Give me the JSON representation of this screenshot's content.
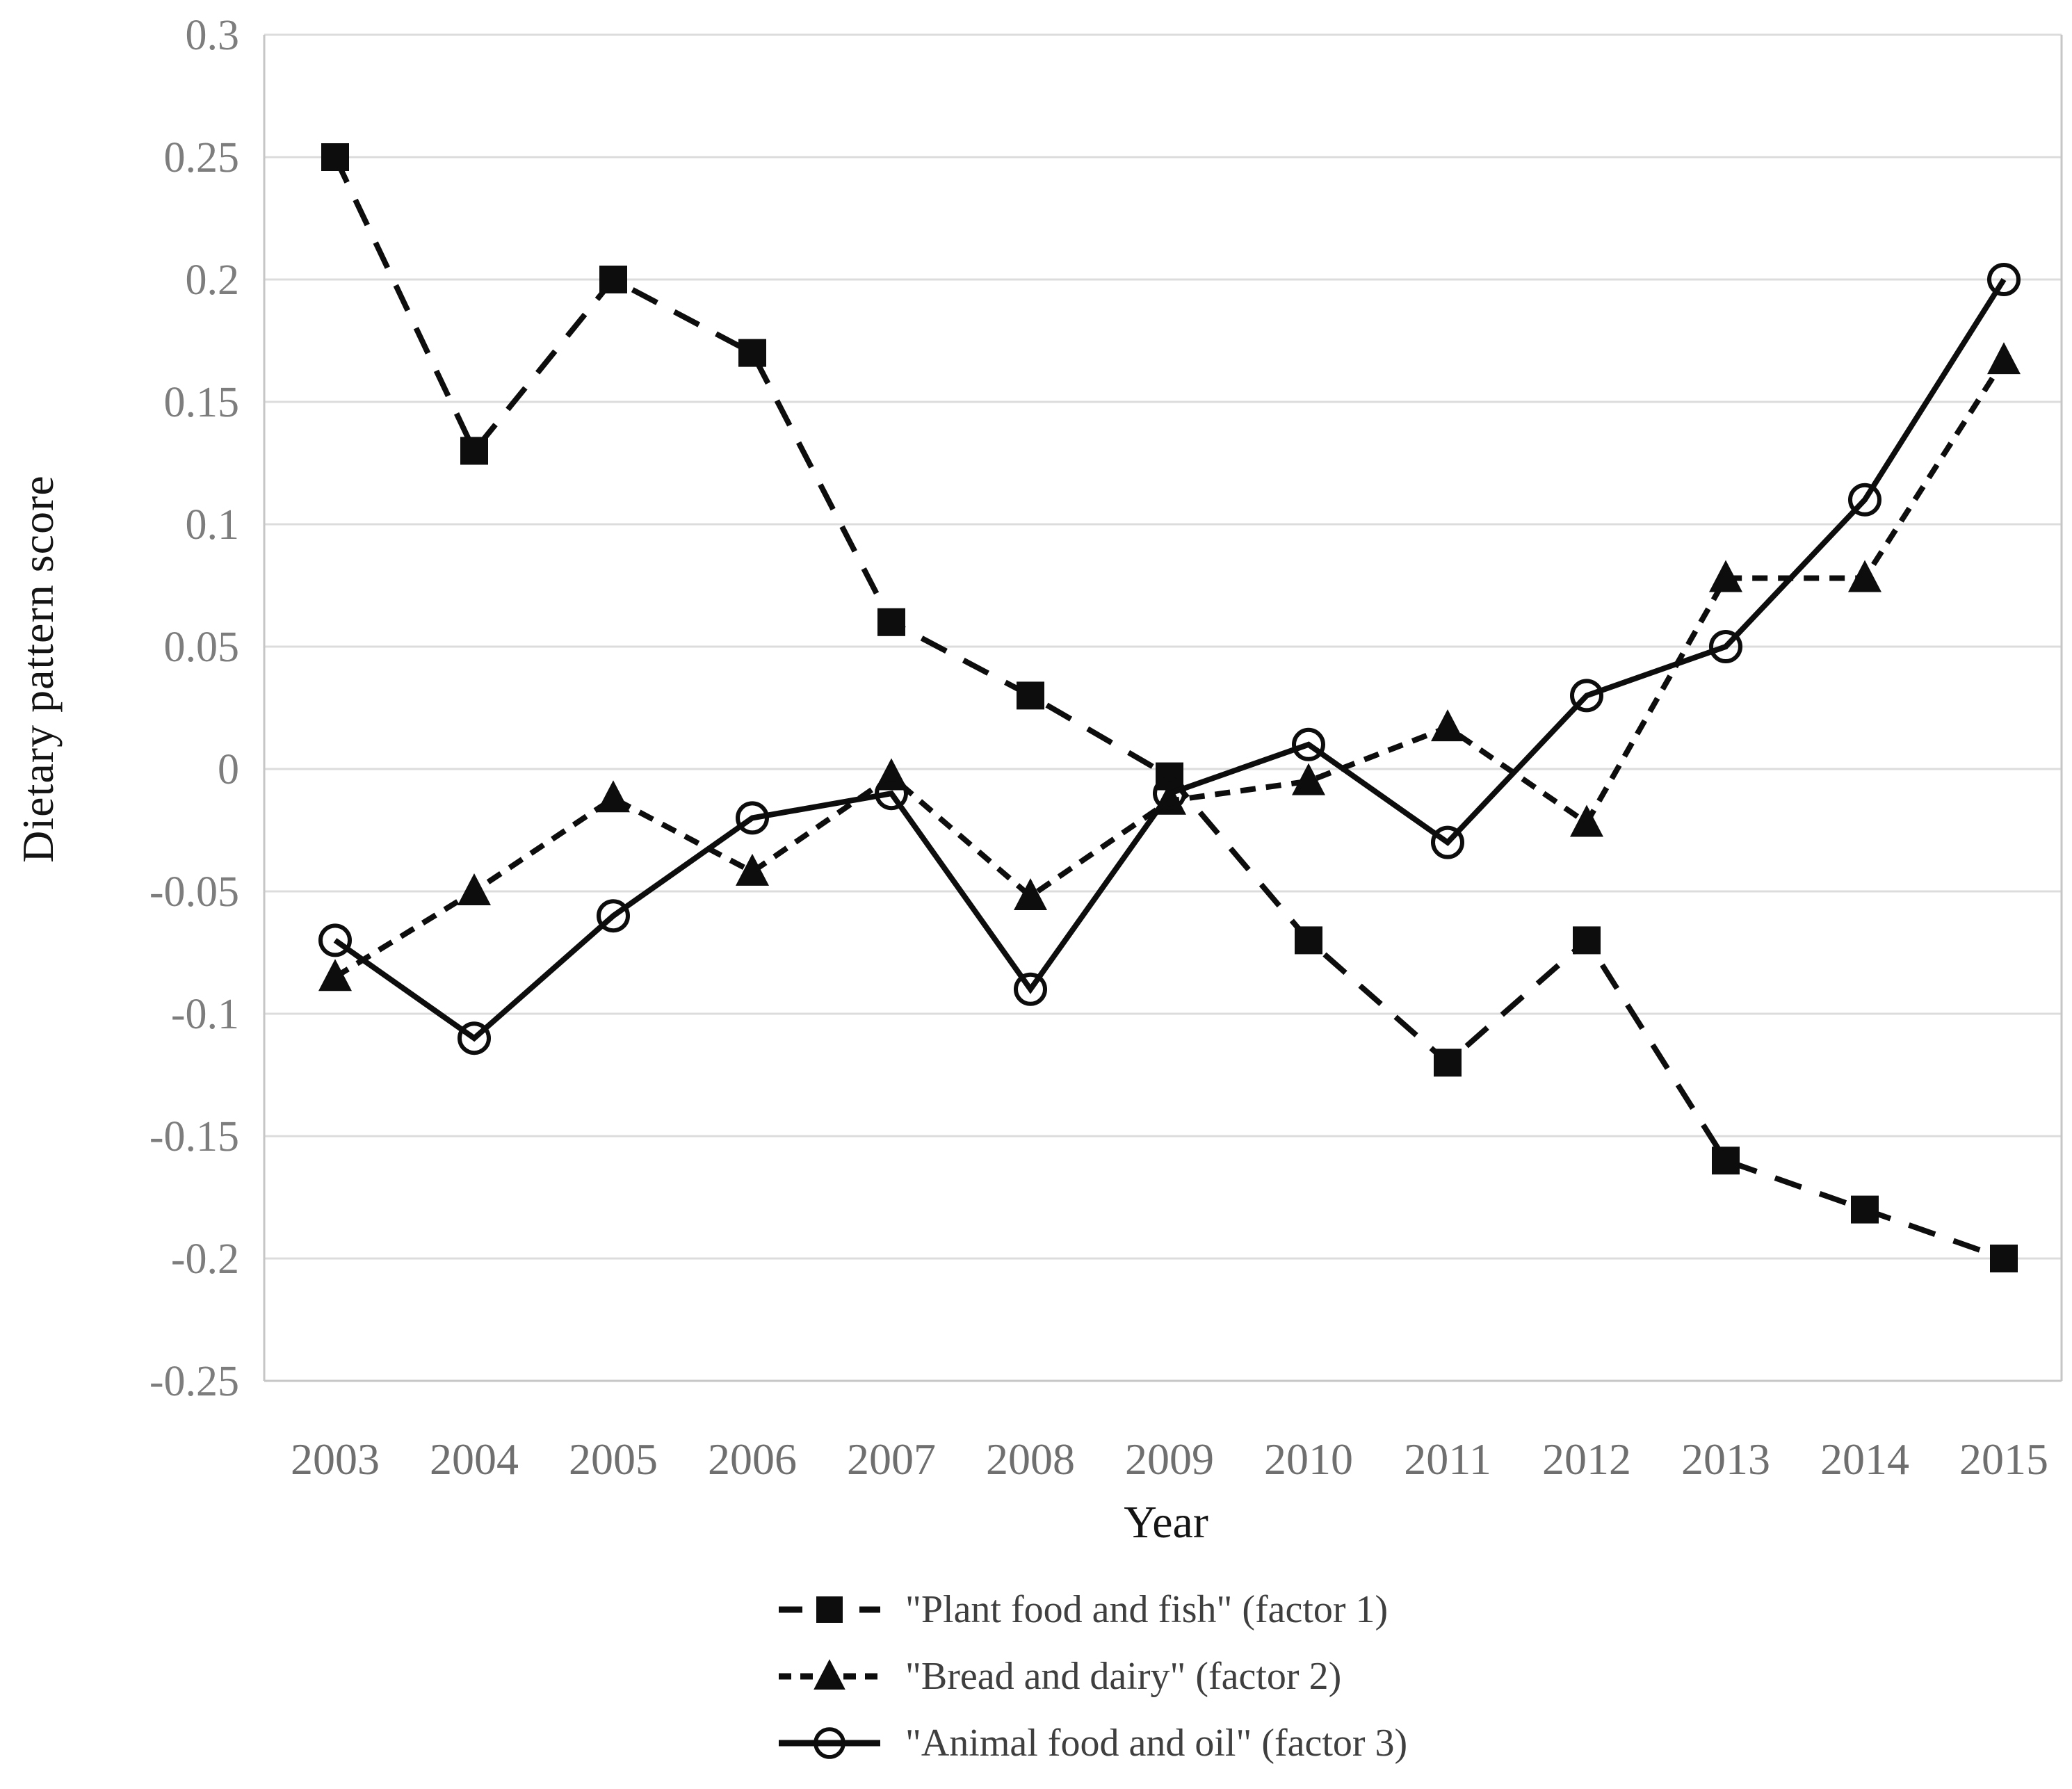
{
  "chart_data": {
    "type": "line",
    "title": "",
    "xlabel": "Year",
    "ylabel": "Dietary pattern score",
    "x": [
      2003,
      2004,
      2005,
      2006,
      2007,
      2008,
      2009,
      2010,
      2011,
      2012,
      2013,
      2014,
      2015
    ],
    "x_labels": [
      "2003",
      "2004",
      "2005",
      "2006",
      "2007",
      "2008",
      "2009",
      "2010",
      "2011",
      "2012",
      "2013",
      "2014",
      "2015"
    ],
    "ylim": [
      -0.25,
      0.3
    ],
    "yticks": [
      0.3,
      0.25,
      0.2,
      0.15,
      0.1,
      0.05,
      0,
      -0.05,
      -0.1,
      -0.15,
      -0.2,
      -0.25
    ],
    "ytick_labels": [
      "0.3",
      "0.25",
      "0.2",
      "0.15",
      "0.1",
      "0.05",
      "0",
      "-0.05",
      "-0.1",
      "-0.15",
      "-0.2",
      "-0.25"
    ],
    "grid": true,
    "legend_position": "bottom",
    "series": [
      {
        "name": "\"Plant food and fish\" (factor 1)",
        "marker": "filled-square",
        "line_style": "long-dash",
        "color": "#0d0d0d",
        "values": [
          0.25,
          0.13,
          0.2,
          0.17,
          0.06,
          0.03,
          -0.003,
          -0.07,
          -0.12,
          -0.07,
          -0.16,
          -0.18,
          -0.2
        ]
      },
      {
        "name": "\"Bread and dairy\" (factor 2)",
        "marker": "filled-triangle",
        "line_style": "short-dash",
        "color": "#0d0d0d",
        "values": [
          -0.085,
          -0.05,
          -0.012,
          -0.042,
          -0.003,
          -0.052,
          -0.013,
          -0.005,
          0.017,
          -0.022,
          0.078,
          0.078,
          0.167
        ]
      },
      {
        "name": "\"Animal food and oil\" (factor 3)",
        "marker": "open-circle",
        "line_style": "solid",
        "color": "#0d0d0d",
        "values": [
          -0.07,
          -0.11,
          -0.06,
          -0.02,
          -0.01,
          -0.09,
          -0.01,
          0.01,
          -0.03,
          0.03,
          0.05,
          0.11,
          0.2
        ]
      }
    ]
  },
  "colors": {
    "background": "#ffffff",
    "grid": "#dcdcdc",
    "axis_border": "#c6c6c6",
    "y_tick_label": "#7d7d7d",
    "x_tick_label": "#6f6f6f",
    "axis_title": "#141414",
    "legend_text": "#3f3f3f",
    "series": "#0d0d0d"
  }
}
